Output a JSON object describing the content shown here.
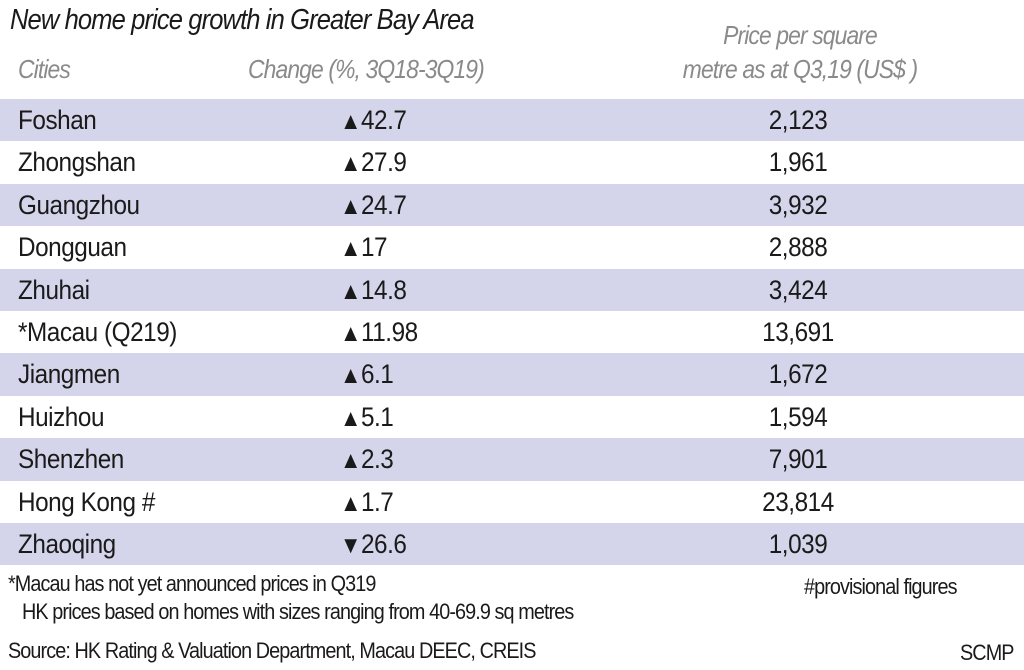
{
  "chart_data": {
    "type": "table",
    "title": "New home price growth in Greater Bay Area",
    "columns": [
      "Cities",
      "Change (%, 3Q18-3Q19)",
      "Price per square metre as at Q3,19 (US$ )"
    ],
    "header_price_line1": "Price per square",
    "header_price_line2": "metre as at Q3,19 (US$ )",
    "rows": [
      {
        "city": "Foshan",
        "direction": "up",
        "change": "42.7",
        "price": "2,123"
      },
      {
        "city": "Zhongshan",
        "direction": "up",
        "change": "27.9",
        "price": "1,961"
      },
      {
        "city": "Guangzhou",
        "direction": "up",
        "change": "24.7",
        "price": "3,932"
      },
      {
        "city": "Dongguan",
        "direction": "up",
        "change": "17",
        "price": "2,888"
      },
      {
        "city": "Zhuhai",
        "direction": "up",
        "change": "14.8",
        "price": "3,424"
      },
      {
        "city": "*Macau (Q219)",
        "direction": "up",
        "change": "11.98",
        "price": "13,691"
      },
      {
        "city": "Jiangmen",
        "direction": "up",
        "change": "6.1",
        "price": "1,672"
      },
      {
        "city": "Huizhou",
        "direction": "up",
        "change": "5.1",
        "price": "1,594"
      },
      {
        "city": "Shenzhen",
        "direction": "up",
        "change": "2.3",
        "price": "7,901"
      },
      {
        "city": "Hong Kong #",
        "direction": "up",
        "change": "1.7",
        "price": "23,814"
      },
      {
        "city": "Zhaoqing",
        "direction": "down",
        "change": "26.6",
        "price": "1,039"
      }
    ],
    "stripe_color": "#d4d5ea"
  },
  "footnotes": {
    "macau": "*Macau has not yet announced prices in Q319",
    "hk": "HK prices based on homes with sizes ranging from 40-69.9 sq metres",
    "provisional": "#provisional figures",
    "source": "Source: HK Rating & Valuation Department, Macau DEEC, CREIS",
    "credit": "SCMP"
  }
}
